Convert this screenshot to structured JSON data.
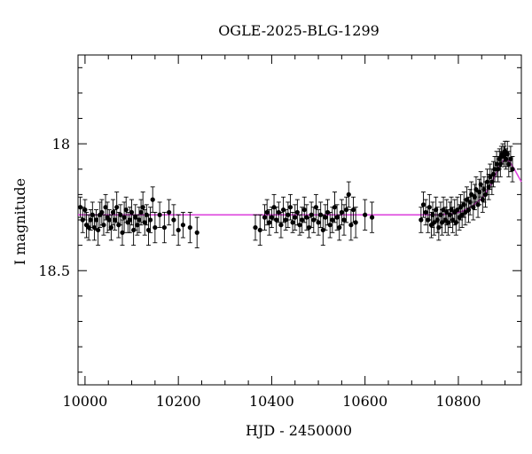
{
  "chart_data": {
    "type": "scatter",
    "title": "OGLE-2025-BLG-1299",
    "xlabel": "HJD - 2450000",
    "ylabel": "I magnitude",
    "xlim": [
      9985,
      10935
    ],
    "ylim": [
      18.95,
      17.65
    ],
    "y_inverted": true,
    "x_ticks": [
      10000,
      10200,
      10400,
      10600,
      10800
    ],
    "y_ticks": [
      18,
      18.5
    ],
    "x_tick_labels": [
      "10000",
      "10200",
      "10400",
      "10600",
      "10800"
    ],
    "y_tick_labels": [
      "18",
      "18.5"
    ],
    "grid": false,
    "colors": {
      "points": "#000000",
      "model": "#dd44dd"
    },
    "series": [
      {
        "type": "scatter_errorbar",
        "points": [
          [
            9990,
            18.25,
            0.04
          ],
          [
            9995,
            18.3,
            0.05
          ],
          [
            10000,
            18.26,
            0.04
          ],
          [
            10003,
            18.32,
            0.05
          ],
          [
            10008,
            18.33,
            0.05
          ],
          [
            10012,
            18.3,
            0.04
          ],
          [
            10016,
            18.28,
            0.05
          ],
          [
            10020,
            18.33,
            0.05
          ],
          [
            10024,
            18.3,
            0.04
          ],
          [
            10028,
            18.34,
            0.06
          ],
          [
            10032,
            18.28,
            0.05
          ],
          [
            10036,
            18.27,
            0.05
          ],
          [
            10040,
            18.32,
            0.04
          ],
          [
            10044,
            18.25,
            0.05
          ],
          [
            10048,
            18.29,
            0.06
          ],
          [
            10052,
            18.3,
            0.04
          ],
          [
            10056,
            18.33,
            0.05
          ],
          [
            10060,
            18.27,
            0.05
          ],
          [
            10064,
            18.3,
            0.04
          ],
          [
            10068,
            18.25,
            0.06
          ],
          [
            10072,
            18.32,
            0.05
          ],
          [
            10076,
            18.28,
            0.04
          ],
          [
            10080,
            18.35,
            0.05
          ],
          [
            10084,
            18.29,
            0.06
          ],
          [
            10088,
            18.26,
            0.05
          ],
          [
            10092,
            18.31,
            0.04
          ],
          [
            10096,
            18.3,
            0.05
          ],
          [
            10100,
            18.27,
            0.05
          ],
          [
            10104,
            18.34,
            0.06
          ],
          [
            10108,
            18.29,
            0.05
          ],
          [
            10112,
            18.32,
            0.04
          ],
          [
            10116,
            18.3,
            0.05
          ],
          [
            10120,
            18.27,
            0.05
          ],
          [
            10124,
            18.25,
            0.06
          ],
          [
            10128,
            18.31,
            0.05
          ],
          [
            10132,
            18.28,
            0.04
          ],
          [
            10136,
            18.34,
            0.06
          ],
          [
            10140,
            18.3,
            0.05
          ],
          [
            10145,
            18.22,
            0.05
          ],
          [
            10150,
            18.33,
            0.06
          ],
          [
            10160,
            18.28,
            0.05
          ],
          [
            10170,
            18.33,
            0.06
          ],
          [
            10180,
            18.27,
            0.05
          ],
          [
            10190,
            18.3,
            0.06
          ],
          [
            10200,
            18.34,
            0.06
          ],
          [
            10210,
            18.32,
            0.05
          ],
          [
            10225,
            18.33,
            0.06
          ],
          [
            10240,
            18.35,
            0.06
          ],
          [
            10365,
            18.33,
            0.05
          ],
          [
            10375,
            18.34,
            0.06
          ],
          [
            10385,
            18.29,
            0.05
          ],
          [
            10390,
            18.27,
            0.05
          ],
          [
            10395,
            18.31,
            0.05
          ],
          [
            10400,
            18.29,
            0.04
          ],
          [
            10405,
            18.25,
            0.05
          ],
          [
            10410,
            18.3,
            0.05
          ],
          [
            10415,
            18.27,
            0.04
          ],
          [
            10420,
            18.32,
            0.05
          ],
          [
            10425,
            18.26,
            0.05
          ],
          [
            10430,
            18.3,
            0.04
          ],
          [
            10435,
            18.28,
            0.05
          ],
          [
            10440,
            18.25,
            0.05
          ],
          [
            10445,
            18.31,
            0.04
          ],
          [
            10450,
            18.29,
            0.05
          ],
          [
            10455,
            18.27,
            0.05
          ],
          [
            10460,
            18.32,
            0.04
          ],
          [
            10465,
            18.3,
            0.05
          ],
          [
            10470,
            18.26,
            0.05
          ],
          [
            10475,
            18.29,
            0.05
          ],
          [
            10480,
            18.33,
            0.04
          ],
          [
            10485,
            18.28,
            0.05
          ],
          [
            10490,
            18.3,
            0.05
          ],
          [
            10495,
            18.25,
            0.05
          ],
          [
            10500,
            18.31,
            0.05
          ],
          [
            10505,
            18.28,
            0.05
          ],
          [
            10510,
            18.34,
            0.06
          ],
          [
            10515,
            18.29,
            0.05
          ],
          [
            10520,
            18.27,
            0.05
          ],
          [
            10525,
            18.32,
            0.05
          ],
          [
            10530,
            18.3,
            0.05
          ],
          [
            10535,
            18.25,
            0.06
          ],
          [
            10540,
            18.29,
            0.05
          ],
          [
            10545,
            18.33,
            0.05
          ],
          [
            10550,
            18.27,
            0.05
          ],
          [
            10555,
            18.3,
            0.06
          ],
          [
            10560,
            18.26,
            0.05
          ],
          [
            10565,
            18.2,
            0.05
          ],
          [
            10570,
            18.32,
            0.06
          ],
          [
            10575,
            18.26,
            0.05
          ],
          [
            10580,
            18.31,
            0.06
          ],
          [
            10600,
            18.28,
            0.06
          ],
          [
            10615,
            18.29,
            0.06
          ],
          [
            10720,
            18.3,
            0.05
          ],
          [
            10725,
            18.24,
            0.05
          ],
          [
            10730,
            18.27,
            0.05
          ],
          [
            10735,
            18.3,
            0.05
          ],
          [
            10738,
            18.25,
            0.05
          ],
          [
            10742,
            18.32,
            0.05
          ],
          [
            10745,
            18.28,
            0.05
          ],
          [
            10748,
            18.31,
            0.05
          ],
          [
            10752,
            18.26,
            0.05
          ],
          [
            10755,
            18.3,
            0.05
          ],
          [
            10758,
            18.33,
            0.05
          ],
          [
            10762,
            18.28,
            0.05
          ],
          [
            10765,
            18.31,
            0.05
          ],
          [
            10768,
            18.26,
            0.05
          ],
          [
            10772,
            18.3,
            0.05
          ],
          [
            10775,
            18.27,
            0.05
          ],
          [
            10778,
            18.31,
            0.05
          ],
          [
            10782,
            18.28,
            0.05
          ],
          [
            10785,
            18.26,
            0.05
          ],
          [
            10788,
            18.3,
            0.05
          ],
          [
            10792,
            18.27,
            0.05
          ],
          [
            10795,
            18.31,
            0.05
          ],
          [
            10798,
            18.26,
            0.05
          ],
          [
            10802,
            18.29,
            0.05
          ],
          [
            10805,
            18.25,
            0.05
          ],
          [
            10808,
            18.28,
            0.05
          ],
          [
            10812,
            18.24,
            0.05
          ],
          [
            10815,
            18.27,
            0.05
          ],
          [
            10818,
            18.22,
            0.05
          ],
          [
            10822,
            18.26,
            0.05
          ],
          [
            10825,
            18.23,
            0.05
          ],
          [
            10828,
            18.2,
            0.05
          ],
          [
            10832,
            18.25,
            0.05
          ],
          [
            10835,
            18.21,
            0.05
          ],
          [
            10838,
            18.18,
            0.05
          ],
          [
            10842,
            18.24,
            0.05
          ],
          [
            10845,
            18.19,
            0.05
          ],
          [
            10848,
            18.16,
            0.05
          ],
          [
            10852,
            18.22,
            0.05
          ],
          [
            10855,
            18.18,
            0.05
          ],
          [
            10858,
            18.2,
            0.05
          ],
          [
            10862,
            18.15,
            0.05
          ],
          [
            10865,
            18.17,
            0.05
          ],
          [
            10868,
            18.13,
            0.05
          ],
          [
            10872,
            18.15,
            0.05
          ],
          [
            10875,
            18.12,
            0.05
          ],
          [
            10878,
            18.1,
            0.05
          ],
          [
            10882,
            18.08,
            0.05
          ],
          [
            10885,
            18.1,
            0.05
          ],
          [
            10888,
            18.06,
            0.04
          ],
          [
            10890,
            18.08,
            0.05
          ],
          [
            10892,
            18.05,
            0.04
          ],
          [
            10895,
            18.04,
            0.04
          ],
          [
            10898,
            18.05,
            0.04
          ],
          [
            10900,
            18.03,
            0.04
          ],
          [
            10902,
            18.06,
            0.04
          ],
          [
            10905,
            18.04,
            0.05
          ],
          [
            10908,
            18.08,
            0.05
          ],
          [
            10912,
            18.06,
            0.05
          ],
          [
            10916,
            18.1,
            0.05
          ]
        ]
      },
      {
        "type": "line",
        "x": [
          9985,
          10100,
          10300,
          10500,
          10700,
          10760,
          10790,
          10810,
          10830,
          10850,
          10860,
          10870,
          10880,
          10890,
          10900,
          10910,
          10920,
          10935
        ],
        "y": [
          18.28,
          18.28,
          18.28,
          18.28,
          18.28,
          18.28,
          18.275,
          18.265,
          18.245,
          18.215,
          18.19,
          18.16,
          18.12,
          18.08,
          18.06,
          18.07,
          18.1,
          18.15
        ]
      }
    ]
  }
}
